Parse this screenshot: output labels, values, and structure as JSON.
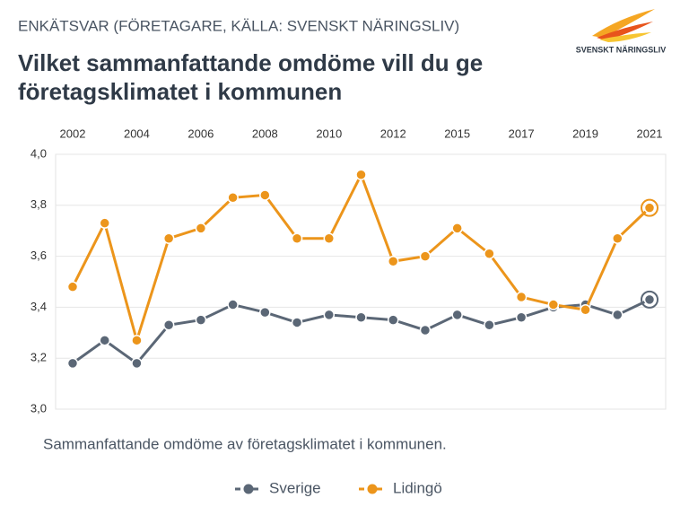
{
  "chart_data": {
    "type": "line",
    "header": "ENKÄTSVAR (FÖRETAGARE, KÄLLA: SVENSKT NÄRINGSLIV)",
    "logo_text": "SVENSKT NÄRINGSLIV",
    "title": [
      "Vilket sammanfattande omdöme vill du ge",
      "företagsklimatet i kommunen"
    ],
    "caption": "Sammanfattande omdöme av företagsklimatet i kommunen.",
    "categories": [
      "2002",
      null,
      "2004",
      null,
      "2006",
      null,
      "2008",
      null,
      "2010",
      null,
      "2012",
      null,
      "2015",
      null,
      "2017",
      null,
      "2019",
      null,
      "2021"
    ],
    "series": [
      {
        "name": "Sverige",
        "color": "#5b6776",
        "values": [
          3.18,
          3.27,
          3.18,
          3.33,
          3.35,
          3.41,
          3.38,
          3.34,
          3.37,
          3.36,
          3.35,
          3.31,
          3.37,
          3.33,
          3.36,
          3.4,
          3.41,
          3.37,
          3.43
        ]
      },
      {
        "name": "Lidingö",
        "color": "#ec951b",
        "values": [
          3.48,
          3.73,
          3.27,
          3.67,
          3.71,
          3.83,
          3.84,
          3.67,
          3.67,
          3.92,
          3.58,
          3.6,
          3.71,
          3.61,
          3.44,
          3.41,
          3.39,
          3.67,
          3.79
        ]
      }
    ],
    "ylim": [
      3.0,
      4.0
    ],
    "yticks": [
      {
        "value": 3.0,
        "label": "3,0"
      },
      {
        "value": 3.2,
        "label": "3,2"
      },
      {
        "value": 3.4,
        "label": "3,4"
      },
      {
        "value": 3.6,
        "label": "3,6"
      },
      {
        "value": 3.8,
        "label": "3,8"
      },
      {
        "value": 4.0,
        "label": "4,0"
      }
    ],
    "grid": true,
    "legend": "bottom"
  }
}
